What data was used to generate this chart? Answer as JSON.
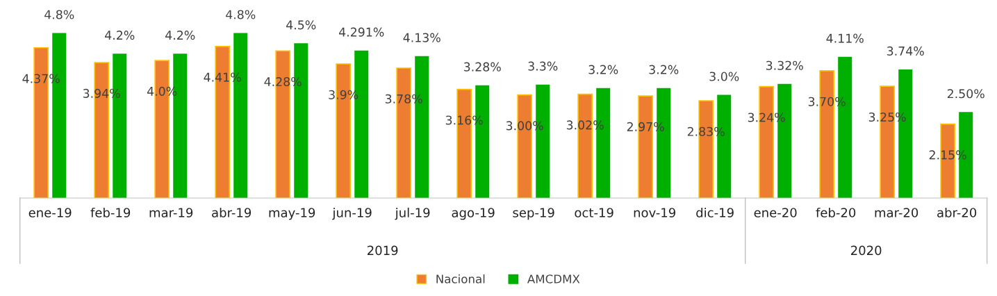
{
  "chart_data": {
    "type": "bar",
    "categories": [
      "ene-19",
      "feb-19",
      "mar-19",
      "abr-19",
      "may-19",
      "jun-19",
      "jul-19",
      "ago-19",
      "sep-19",
      "oct-19",
      "nov-19",
      "dic-19",
      "ene-20",
      "feb-20",
      "mar-20",
      "abr-20"
    ],
    "series": [
      {
        "name": "Nacional",
        "color": "#ed7d31",
        "values": [
          4.37,
          3.94,
          4.0,
          4.41,
          4.28,
          3.9,
          3.78,
          3.16,
          3.0,
          3.02,
          2.97,
          2.83,
          3.24,
          3.7,
          3.25,
          2.15
        ],
        "value_labels": [
          "4.37%",
          "3.94%",
          "4.0%",
          "4.41%",
          "4.28%",
          "3.9%",
          "3.78%",
          "3.16%",
          "3.00%",
          "3.02%",
          "2.97%",
          "2.83%",
          "3.24%",
          "3.70%",
          "3.25%",
          "2.15%"
        ]
      },
      {
        "name": "AMCDMX",
        "color": "#00b000",
        "values": [
          4.8,
          4.2,
          4.2,
          4.8,
          4.5,
          4.291,
          4.13,
          3.28,
          3.3,
          3.2,
          3.2,
          3.0,
          3.32,
          4.11,
          3.74,
          2.5
        ],
        "value_labels": [
          "4.8%",
          "4.2%",
          "4.2%",
          "4.8%",
          "4.5%",
          "4.291%",
          "4.13%",
          "3.28%",
          "3.3%",
          "3.2%",
          "3.2%",
          "3.0%",
          "3.32%",
          "4.11%",
          "3.74%",
          "2.50%"
        ]
      }
    ],
    "tick_labels": "x",
    "grid": false,
    "legend": "bottom",
    "annotations": [
      "2019",
      "2020"
    ]
  }
}
